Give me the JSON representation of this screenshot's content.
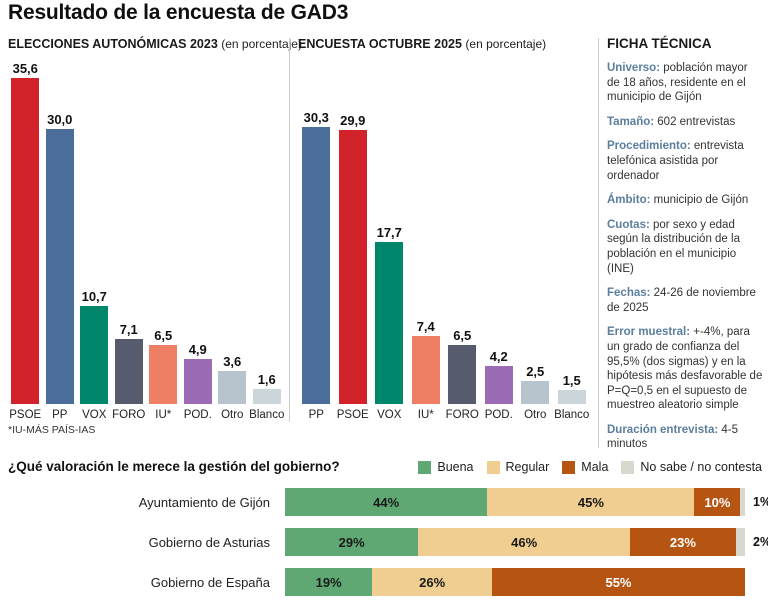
{
  "title": "Resultado de la encuesta de GAD3",
  "colors": {
    "divider": "#cccccc",
    "ficha_label": "#5b7e9e",
    "text_dark": "#1a1a1a"
  },
  "chart_data": [
    {
      "type": "bar",
      "title": "ELECCIONES AUTONÓMICAS 2023",
      "subtitle": "(en porcentaje)",
      "categories": [
        "PSOE",
        "PP",
        "VOX",
        "FORO",
        "IU*",
        "POD.",
        "Otro",
        "Blanco"
      ],
      "values": [
        35.6,
        30.0,
        10.7,
        7.1,
        6.5,
        4.9,
        3.6,
        1.6
      ],
      "display_values": [
        "35,6",
        "30,0",
        "10,7",
        "7,1",
        "6,5",
        "4,9",
        "3,6",
        "1,6"
      ],
      "colors": [
        "#d2232a",
        "#4b6d9c",
        "#00876b",
        "#565b6d",
        "#ee7f64",
        "#9c6bb5",
        "#b7c4cd",
        "#cbd6da"
      ],
      "footnote": "*IU-MÁS PAÍS-IAS",
      "ylim": [
        0,
        40
      ],
      "grid": false,
      "legend_position": "none"
    },
    {
      "type": "bar",
      "title": "ENCUESTA OCTUBRE 2025",
      "subtitle": "(en porcentaje)",
      "categories": [
        "PP",
        "PSOE",
        "VOX",
        "IU*",
        "FORO",
        "POD.",
        "Otro",
        "Blanco"
      ],
      "values": [
        30.3,
        29.9,
        17.7,
        7.4,
        6.5,
        4.2,
        2.5,
        1.5
      ],
      "display_values": [
        "30,3",
        "29,9",
        "17,7",
        "7,4",
        "6,5",
        "4,2",
        "2,5",
        "1,5"
      ],
      "colors": [
        "#4b6d9c",
        "#d2232a",
        "#00876b",
        "#ee7f64",
        "#565b6d",
        "#9c6bb5",
        "#b7c4cd",
        "#cbd6da"
      ],
      "ylim": [
        0,
        40
      ],
      "grid": false,
      "legend_position": "none"
    },
    {
      "type": "bar",
      "orientation": "horizontal-stacked",
      "title": "¿Qué valoración le merece la gestión del gobierno?",
      "categories": [
        "Ayuntamiento de Gijón",
        "Gobierno de Asturias",
        "Gobierno de España"
      ],
      "series": [
        {
          "name": "Buena",
          "color": "#5fa873",
          "label_color": "#1a1a1a",
          "values": [
            44,
            29,
            19
          ]
        },
        {
          "name": "Regular",
          "color": "#f0cd90",
          "label_color": "#1a1a1a",
          "values": [
            45,
            46,
            26
          ]
        },
        {
          "name": "Mala",
          "color": "#b65412",
          "label_color": "#ffffff",
          "values": [
            10,
            23,
            55
          ]
        },
        {
          "name": "No sabe / no contesta",
          "color": "#d8d8cf",
          "label_color": "#1a1a1a",
          "values": [
            1,
            2,
            0
          ]
        }
      ],
      "trailing_labels": [
        "1%",
        "2%",
        ""
      ],
      "xlim": [
        0,
        100
      ],
      "legend_position": "top-right"
    }
  ],
  "ficha": {
    "header": "FICHA TÉCNICA",
    "items": [
      {
        "label": "Universo:",
        "text": "población mayor de 18 años, residente en el municipio de Gijón"
      },
      {
        "label": "Tamaño:",
        "text": "602 entrevistas"
      },
      {
        "label": "Procedimiento:",
        "text": "entrevista telefónica asistida por ordenador"
      },
      {
        "label": "Ámbito:",
        "text": "municipio de Gijón"
      },
      {
        "label": "Cuotas:",
        "text": "por sexo y edad según la distribución de la población en el municipio (INE)"
      },
      {
        "label": "Fechas:",
        "text": "24-26 de noviembre de 2025"
      },
      {
        "label": "Error muestral:",
        "text": "+-4%, para un grado de confianza del 95,5% (dos sigmas) y en la hipótesis más desfavorable de P=Q=0,5 en el supuesto de muestreo aleatorio simple"
      },
      {
        "label": "Duración entrevista:",
        "text": "4-5 minutos"
      }
    ]
  }
}
